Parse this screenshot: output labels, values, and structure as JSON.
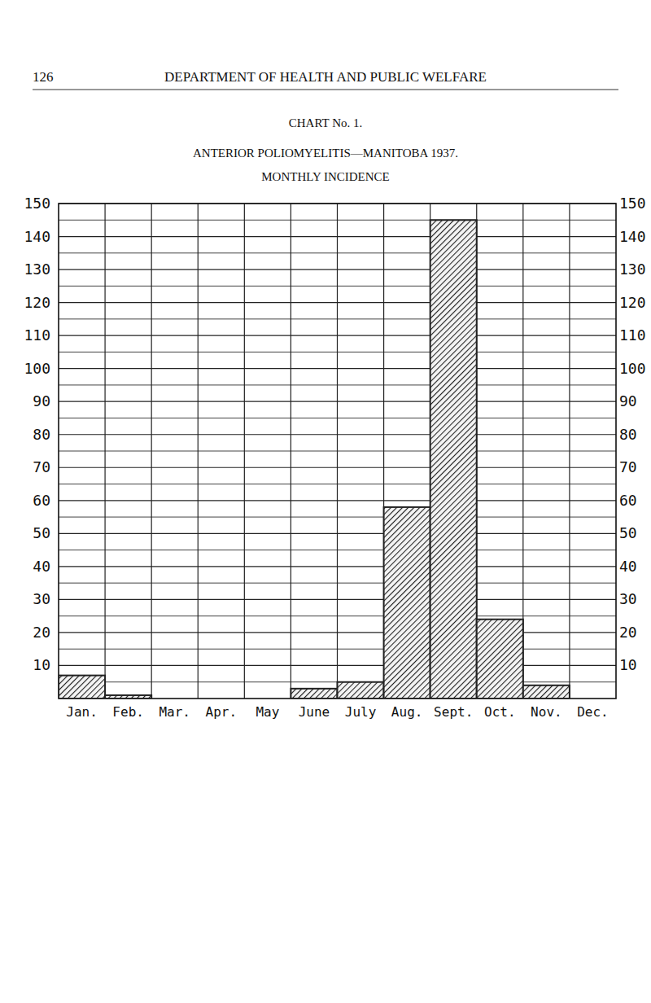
{
  "page": {
    "number": "126",
    "header": "DEPARTMENT OF HEALTH AND PUBLIC WELFARE",
    "chart_label": "CHART No. 1."
  },
  "chart_data": {
    "type": "bar",
    "title": "ANTERIOR POLIOMYELITIS—MANITOBA 1937.",
    "subtitle": "MONTHLY INCIDENCE",
    "categories": [
      "Jan.",
      "Feb.",
      "Mar.",
      "Apr.",
      "May",
      "June",
      "July",
      "Aug.",
      "Sept.",
      "Oct.",
      "Nov.",
      "Dec."
    ],
    "values": [
      7,
      1,
      0,
      0,
      0,
      3,
      5,
      58,
      145,
      24,
      4,
      0
    ],
    "color": "#222222",
    "ylim": [
      0,
      150
    ],
    "yticks": [
      10,
      20,
      30,
      40,
      50,
      60,
      70,
      80,
      90,
      100,
      110,
      120,
      130,
      140,
      150
    ],
    "grid": true
  }
}
